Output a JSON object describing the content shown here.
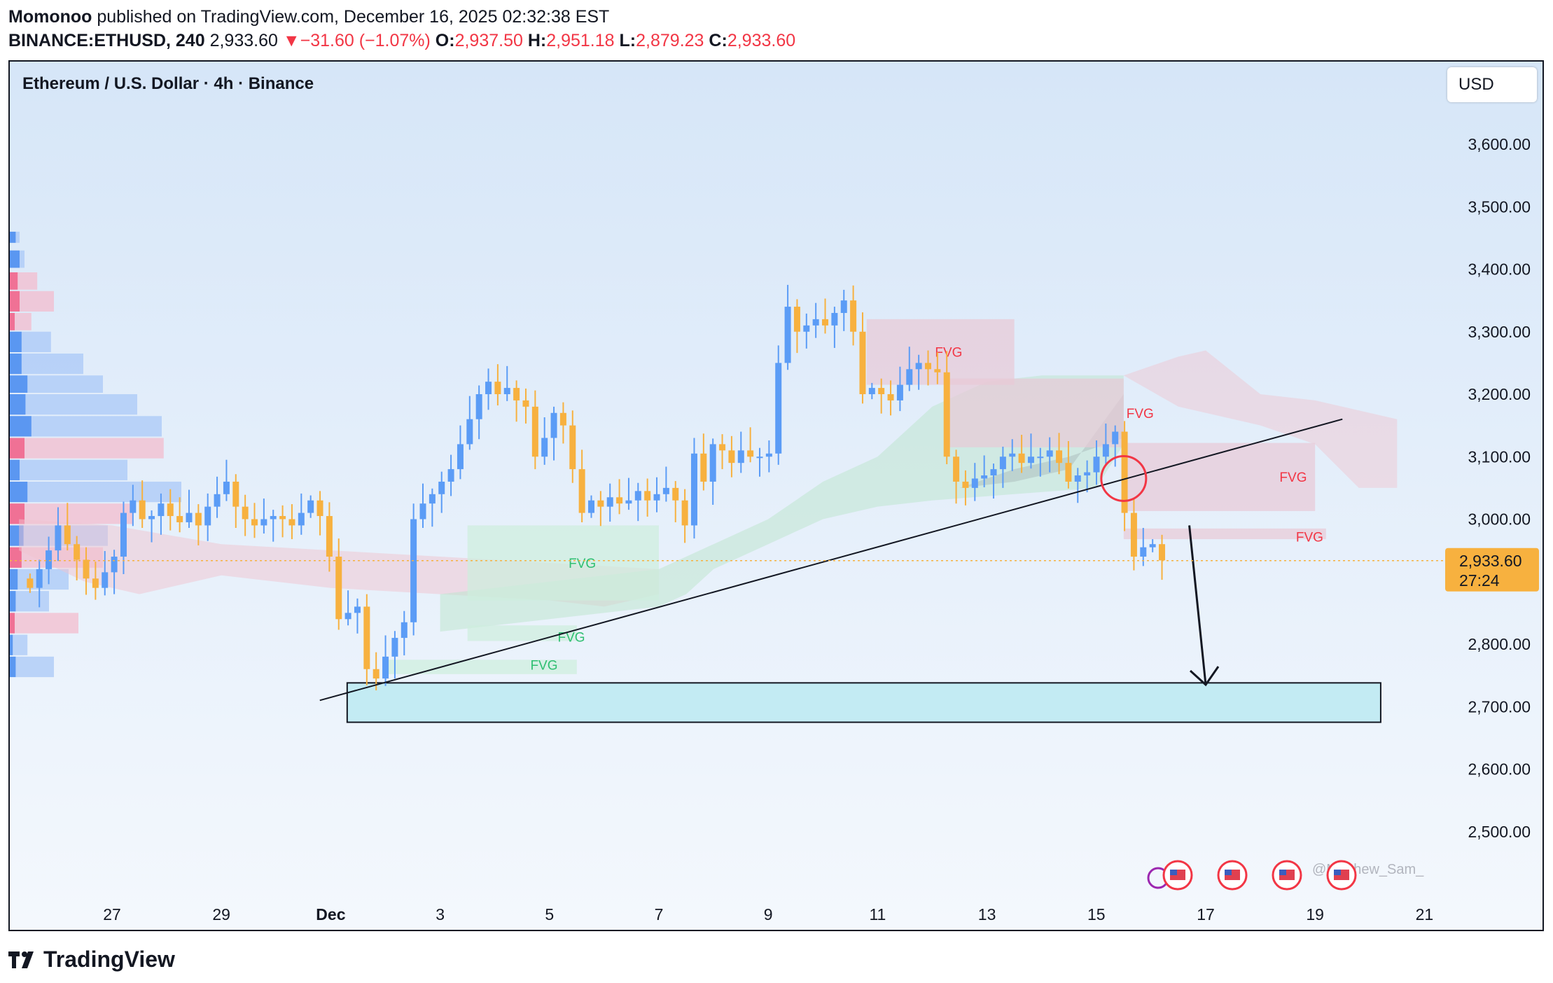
{
  "header": {
    "author": "Momonoo",
    "published_text": "published on TradingView.com, December 16, 2025 02:32:38 EST",
    "symbol": "BINANCE:ETHUSD, 240",
    "last": "2,933.60",
    "change_arrow": "▼",
    "change": "−31.60 (−1.07%)",
    "o_label": "O:",
    "o": "2,937.50",
    "h_label": "H:",
    "h": "2,951.18",
    "l_label": "L:",
    "l": "2,879.23",
    "c_label": "C:",
    "c": "2,933.60"
  },
  "chart_title": "Ethereum / U.S. Dollar · 4h · Binance",
  "currency_button": "USD",
  "footer_brand": "TradingView",
  "watermark": "@Matthew_Sam_",
  "colors": {
    "up": "#5b9cf6",
    "down": "#f7b13f",
    "fvg_bear": "#e8c9d6",
    "fvg_bull": "#cdeedd",
    "zone": "#c3ebf3",
    "price_tag": "#f7b13f",
    "bg_top": "#d6e6f8",
    "bg_bottom": "#f4f8fd"
  },
  "chart_data": {
    "type": "candlestick",
    "symbol": "ETHUSD",
    "interval": "4h",
    "ylim": [
      2430,
      3680
    ],
    "y_ticks": [
      3600,
      3500,
      3400,
      3300,
      3200,
      3100,
      3000,
      2800,
      2700,
      2600,
      2500
    ],
    "y_tick_labels": [
      "3,600.00",
      "3,500.00",
      "3,400.00",
      "3,300.00",
      "3,200.00",
      "3,100.00",
      "3,000.00",
      "2,800.00",
      "2,700.00",
      "2,600.00",
      "2,500.00"
    ],
    "x_range_days": [
      25.3,
      21.2
    ],
    "x_ticks": [
      {
        "day": 27,
        "label": "27"
      },
      {
        "day": 29,
        "label": "29"
      },
      {
        "day": 31,
        "label": "Dec"
      },
      {
        "day": 33,
        "label": "3"
      },
      {
        "day": 35,
        "label": "5"
      },
      {
        "day": 37,
        "label": "7"
      },
      {
        "day": 39,
        "label": "9"
      },
      {
        "day": 41,
        "label": "11"
      },
      {
        "day": 43,
        "label": "13"
      },
      {
        "day": 45,
        "label": "15"
      },
      {
        "day": 47,
        "label": "17"
      },
      {
        "day": 49,
        "label": "19"
      },
      {
        "day": 51,
        "label": "21"
      }
    ],
    "current_price": 2933.6,
    "current_price_label": "2,933.60",
    "countdown": "27:24",
    "closes": [
      2890,
      2920,
      2950,
      2990,
      2960,
      2935,
      2905,
      2890,
      2915,
      2940,
      3010,
      3030,
      3000,
      3005,
      3025,
      3005,
      2995,
      3010,
      2990,
      3020,
      3040,
      3060,
      3020,
      3000,
      2990,
      3000,
      3005,
      3000,
      2990,
      3010,
      3030,
      3005,
      2940,
      2840,
      2850,
      2860,
      2760,
      2745,
      2780,
      2810,
      2835,
      3000,
      3025,
      3040,
      3060,
      3080,
      3120,
      3160,
      3200,
      3220,
      3200,
      3210,
      3190,
      3180,
      3100,
      3130,
      3170,
      3150,
      3080,
      3010,
      3030,
      3020,
      3035,
      3025,
      3030,
      3045,
      3030,
      3040,
      3050,
      3030,
      2990,
      3105,
      3060,
      3120,
      3110,
      3090,
      3110,
      3100,
      3100,
      3105,
      3250,
      3340,
      3300,
      3310,
      3320,
      3310,
      3330,
      3350,
      3300,
      3200,
      3210,
      3200,
      3190,
      3215,
      3240,
      3250,
      3240,
      3235,
      3100,
      3060,
      3050,
      3065,
      3070,
      3080,
      3100,
      3105,
      3090,
      3100,
      3100,
      3110,
      3090,
      3060,
      3070,
      3075,
      3100,
      3120,
      3140,
      3010,
      2940,
      2955,
      2960,
      2934
    ],
    "annotations": {
      "fvg_labels": [
        "FVG",
        "FVG",
        "FVG",
        "FVG",
        "FVG",
        "FVG",
        "FVG"
      ],
      "trendline": {
        "from": {
          "day": 30.8,
          "price": 2710
        },
        "to": {
          "day": 49.5,
          "price": 3160
        }
      },
      "target_zone": {
        "price_low": 2675,
        "price_high": 2738,
        "from_day": 31.3,
        "to_day": 50.2
      },
      "arrow": {
        "from": {
          "day": 46.7,
          "price": 2990
        },
        "to": {
          "day": 47.0,
          "price": 2735
        }
      },
      "circle": {
        "day": 45.5,
        "price": 3065
      }
    }
  }
}
